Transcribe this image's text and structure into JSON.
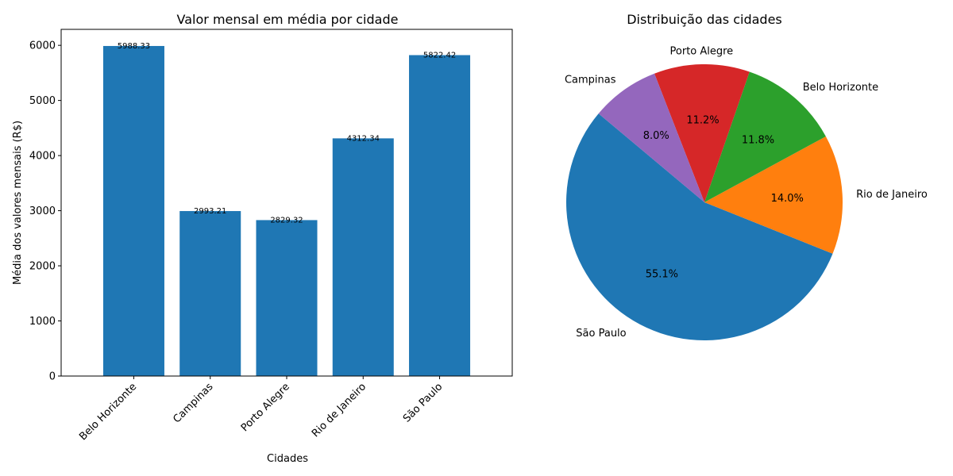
{
  "chart_data": [
    {
      "type": "bar",
      "title": "Valor mensal em média por cidade",
      "xlabel": "Cidades",
      "ylabel": "Média dos valores mensais (R$)",
      "categories": [
        "Belo Horizonte",
        "Campinas",
        "Porto Alegre",
        "Rio de Janeiro",
        "São Paulo"
      ],
      "values": [
        5988.33,
        2993.21,
        2829.32,
        4312.34,
        5822.42
      ],
      "value_labels": [
        "5988.33",
        "2993.21",
        "2829.32",
        "4312.34",
        "5822.42"
      ],
      "ylim": [
        0,
        6290
      ],
      "yticks": [
        0,
        1000,
        2000,
        3000,
        4000,
        5000,
        6000
      ],
      "xtick_rotation": 45,
      "grid": false,
      "colors": {
        "bar": "#1f77b4"
      }
    },
    {
      "type": "pie",
      "title": "Distribuição das cidades",
      "startangle": 140,
      "direction": "counterclockwise",
      "slices": [
        {
          "label": "São Paulo",
          "value": 55.1,
          "pct_label": "55.1%",
          "color": "#1f77b4"
        },
        {
          "label": "Rio de Janeiro",
          "value": 14.0,
          "pct_label": "14.0%",
          "color": "#ff7f0e"
        },
        {
          "label": "Belo Horizonte",
          "value": 11.8,
          "pct_label": "11.8%",
          "color": "#2ca02c"
        },
        {
          "label": "Porto Alegre",
          "value": 11.2,
          "pct_label": "11.2%",
          "color": "#d62728"
        },
        {
          "label": "Campinas",
          "value": 8.0,
          "pct_label": "8.0%",
          "color": "#9467bd"
        }
      ]
    }
  ]
}
